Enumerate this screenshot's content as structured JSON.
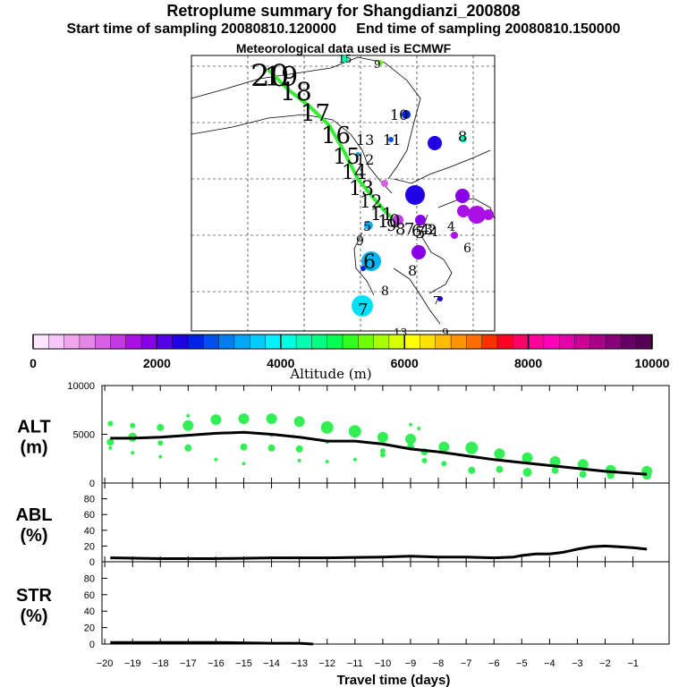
{
  "header": {
    "title": "Retroplume summary for Shangdianzi_200808",
    "start": "Start time of sampling 20080810.120000",
    "end": "End time of sampling 20080810.150000",
    "met": "Meteorological data used is ECMWF"
  },
  "colorbar": {
    "label": "Altitude (m)",
    "min": 0,
    "max": 10000,
    "ticks": [
      "0",
      "2000",
      "4000",
      "6000",
      "8000",
      "10000"
    ],
    "colors": [
      "#ffe6ff",
      "#f7c7f7",
      "#efa6ef",
      "#e585e5",
      "#d960e6",
      "#c638e6",
      "#aa10e6",
      "#8800e6",
      "#5500e6",
      "#2200e6",
      "#0022e6",
      "#0050ee",
      "#007ef2",
      "#00a6f7",
      "#00cdfb",
      "#00f2ff",
      "#00ffe0",
      "#00ffb0",
      "#00ff80",
      "#00ff50",
      "#30ff20",
      "#70ff00",
      "#a8ff00",
      "#d8ff00",
      "#ffff00",
      "#ffe000",
      "#ffbb00",
      "#ff9400",
      "#ff6c00",
      "#ff3000",
      "#ff0022",
      "#ff0066",
      "#ff0099",
      "#ff00bb",
      "#e600aa",
      "#cc0099",
      "#aa0088",
      "#880077",
      "#660066",
      "#550055"
    ]
  },
  "map": {
    "labels": [
      "20",
      "19",
      "18",
      "17",
      "16",
      "15",
      "14",
      "13",
      "12",
      "11",
      "10",
      "9",
      "8",
      "7",
      "6",
      "5",
      "4",
      "3",
      "2",
      "1"
    ],
    "outside_labels": [
      "15",
      "9",
      "10",
      "11",
      "12",
      "13",
      "9",
      "8",
      "6",
      "7",
      "4",
      "5",
      "6",
      "8",
      "7",
      "8",
      "9",
      "13"
    ]
  },
  "chart_data": [
    {
      "type": "scatter",
      "name": "ALT",
      "ylabel": "ALT\n(m)",
      "ylabel_line1": "ALT",
      "ylabel_line2": "(m)",
      "ylim": [
        0,
        10000
      ],
      "yticks": [
        "10000",
        "5000",
        "0"
      ],
      "mean_line": {
        "x": [
          -19.8,
          -19,
          -18,
          -17,
          -16,
          -15,
          -14,
          -13,
          -12,
          -11,
          -10,
          -9,
          -8,
          -7,
          -6,
          -5,
          -4,
          -3,
          -2,
          -1,
          -0.5
        ],
        "y": [
          4600,
          4600,
          4700,
          4900,
          5100,
          5200,
          5000,
          4700,
          4300,
          4300,
          4000,
          3500,
          3200,
          2800,
          2400,
          2100,
          1800,
          1500,
          1200,
          1000,
          900
        ]
      },
      "points": [
        {
          "x": -19.8,
          "y": 4200,
          "s": 4
        },
        {
          "x": -19.8,
          "y": 6100,
          "s": 3
        },
        {
          "x": -19.8,
          "y": 3600,
          "s": 2
        },
        {
          "x": -19,
          "y": 4700,
          "s": 5
        },
        {
          "x": -19,
          "y": 5900,
          "s": 3
        },
        {
          "x": -19,
          "y": 3100,
          "s": 2
        },
        {
          "x": -18,
          "y": 5700,
          "s": 4
        },
        {
          "x": -18,
          "y": 4100,
          "s": 3
        },
        {
          "x": -18,
          "y": 2700,
          "s": 2
        },
        {
          "x": -17,
          "y": 5900,
          "s": 6
        },
        {
          "x": -17,
          "y": 3600,
          "s": 4
        },
        {
          "x": -17,
          "y": 6900,
          "s": 2
        },
        {
          "x": -16,
          "y": 6500,
          "s": 6
        },
        {
          "x": -16,
          "y": 2400,
          "s": 2
        },
        {
          "x": -15,
          "y": 6600,
          "s": 6
        },
        {
          "x": -15,
          "y": 3700,
          "s": 4
        },
        {
          "x": -15,
          "y": 2000,
          "s": 2
        },
        {
          "x": -14,
          "y": 6600,
          "s": 6
        },
        {
          "x": -14,
          "y": 3600,
          "s": 4
        },
        {
          "x": -14,
          "y": 4900,
          "s": 2
        },
        {
          "x": -13,
          "y": 6300,
          "s": 6
        },
        {
          "x": -13,
          "y": 3500,
          "s": 4
        },
        {
          "x": -13,
          "y": 2300,
          "s": 2
        },
        {
          "x": -12,
          "y": 5700,
          "s": 7
        },
        {
          "x": -12,
          "y": 4200,
          "s": 2
        },
        {
          "x": -12,
          "y": 2200,
          "s": 2
        },
        {
          "x": -11,
          "y": 5300,
          "s": 7
        },
        {
          "x": -11,
          "y": 2400,
          "s": 2
        },
        {
          "x": -10,
          "y": 4700,
          "s": 6
        },
        {
          "x": -10,
          "y": 3300,
          "s": 3
        },
        {
          "x": -10,
          "y": 2900,
          "s": 3
        },
        {
          "x": -9,
          "y": 4500,
          "s": 6
        },
        {
          "x": -9,
          "y": 3700,
          "s": 4
        },
        {
          "x": -9,
          "y": 6000,
          "s": 2
        },
        {
          "x": -8.7,
          "y": 5600,
          "s": 2
        },
        {
          "x": -8.5,
          "y": 3200,
          "s": 4
        },
        {
          "x": -8.5,
          "y": 2300,
          "s": 3
        },
        {
          "x": -7.8,
          "y": 3700,
          "s": 6
        },
        {
          "x": -7.8,
          "y": 2000,
          "s": 3
        },
        {
          "x": -6.8,
          "y": 3600,
          "s": 7
        },
        {
          "x": -6.8,
          "y": 1300,
          "s": 4
        },
        {
          "x": -5.8,
          "y": 3000,
          "s": 6
        },
        {
          "x": -5.8,
          "y": 1400,
          "s": 4
        },
        {
          "x": -4.8,
          "y": 2600,
          "s": 6
        },
        {
          "x": -4.8,
          "y": 1100,
          "s": 5
        },
        {
          "x": -3.8,
          "y": 2200,
          "s": 6
        },
        {
          "x": -3.8,
          "y": 1300,
          "s": 4
        },
        {
          "x": -2.8,
          "y": 1900,
          "s": 6
        },
        {
          "x": -2.8,
          "y": 900,
          "s": 4
        },
        {
          "x": -1.8,
          "y": 1300,
          "s": 6
        },
        {
          "x": -1.8,
          "y": 800,
          "s": 4
        },
        {
          "x": -0.5,
          "y": 1200,
          "s": 6
        },
        {
          "x": -0.5,
          "y": 800,
          "s": 5
        }
      ]
    },
    {
      "type": "line",
      "name": "ABL",
      "ylabel_line1": "ABL",
      "ylabel_line2": "(%)",
      "ylim": [
        0,
        100
      ],
      "yticks": [
        "80",
        "60",
        "40",
        "20",
        "0"
      ],
      "x": [
        -19.8,
        -18,
        -16,
        -14,
        -12,
        -10,
        -9,
        -8,
        -7,
        -6,
        -5.3,
        -5,
        -4.5,
        -4,
        -3.5,
        -3,
        -2.5,
        -2,
        -1.5,
        -1,
        -0.5
      ],
      "y": [
        5,
        4,
        4,
        5,
        5,
        6,
        7,
        6,
        6,
        5,
        6,
        8,
        10,
        10,
        12,
        16,
        19,
        20,
        19,
        18,
        16
      ]
    },
    {
      "type": "line",
      "name": "STR",
      "ylabel_line1": "STR",
      "ylabel_line2": "(%)",
      "ylim": [
        0,
        100
      ],
      "yticks": [
        "80",
        "60",
        "40",
        "20",
        "0"
      ],
      "x": [
        -19.8,
        -18,
        -16,
        -14,
        -13,
        -12.5
      ],
      "y": [
        2,
        2,
        2,
        1,
        1,
        0
      ]
    }
  ],
  "xaxis": {
    "label": "Travel time (days)",
    "ticks": [
      "−20",
      "−19",
      "−18",
      "−17",
      "−16",
      "−15",
      "−14",
      "−13",
      "−12",
      "−11",
      "−10",
      "−9",
      "−8",
      "−7",
      "−6",
      "−5",
      "−4",
      "−3",
      "−2",
      "−1"
    ],
    "tick_values": [
      -20,
      -19,
      -18,
      -17,
      -16,
      -15,
      -14,
      -13,
      -12,
      -11,
      -10,
      -9,
      -8,
      -7,
      -6,
      -5,
      -4,
      -3,
      -2,
      -1
    ],
    "range": [
      -20.1,
      0.3
    ]
  }
}
